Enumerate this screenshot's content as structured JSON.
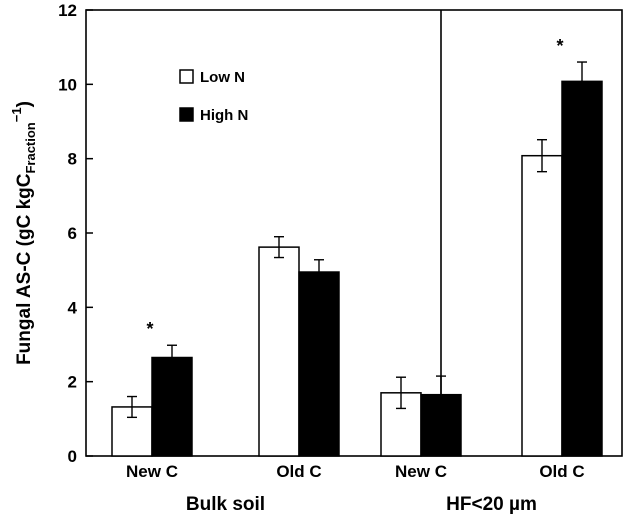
{
  "chart_data": {
    "type": "bar",
    "ylabel_main": "Fungal AS-C (gC kgC",
    "ylabel_sub": "Fraction",
    "ylabel_sup": "−1",
    "ylabel_close": ")",
    "ylim": [
      0,
      12
    ],
    "yticks": [
      "0",
      "2",
      "4",
      "6",
      "8",
      "10",
      "12"
    ],
    "categories": [
      "New C",
      "Old C",
      "New C",
      "Old C"
    ],
    "groups": [
      "Bulk soil",
      "HF<20 µm"
    ],
    "series": [
      {
        "name": "Low N",
        "color": "#ffffff",
        "values": [
          1.32,
          5.62,
          1.7,
          8.08
        ],
        "errors": [
          0.28,
          0.28,
          0.42,
          0.43
        ]
      },
      {
        "name": "High N",
        "color": "#000000",
        "values": [
          2.65,
          4.95,
          1.65,
          10.08
        ],
        "errors": [
          0.33,
          0.33,
          0.5,
          0.52
        ]
      }
    ],
    "significance": [
      "*",
      "",
      "",
      "*"
    ],
    "grid": false,
    "legend_position": "top-left"
  }
}
